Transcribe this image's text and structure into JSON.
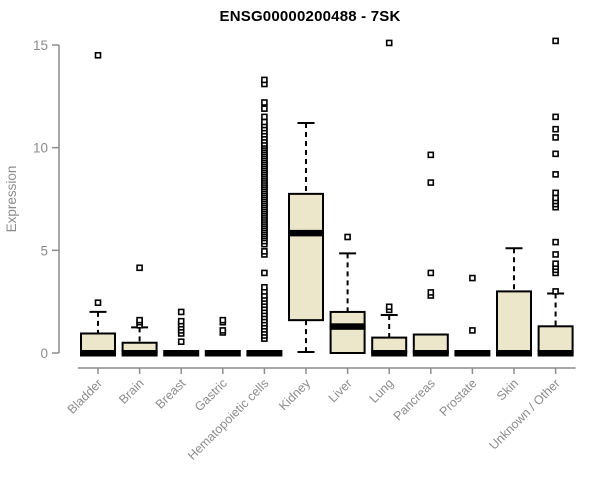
{
  "chart_data": {
    "type": "boxplot",
    "title": "ENSG00000200488 - 7SK",
    "ylabel": "Expression",
    "xlabel": "",
    "ylim": [
      0,
      15
    ],
    "yticks": [
      0,
      5,
      10,
      15
    ],
    "grid": false,
    "legend": "none",
    "colors": {
      "box_fill": "#ece7cb",
      "box_stroke": "#000000",
      "axis": "#8c8c8c",
      "tick_label": "#8c8c8c",
      "title": "#000000"
    },
    "categories": [
      "Bladder",
      "Brain",
      "Breast",
      "Gastric",
      "Hematopoietic cells",
      "Kidney",
      "Liver",
      "Lung",
      "Pancreas",
      "Prostate",
      "Skin",
      "Unknown / Other"
    ],
    "series": [
      {
        "name": "Bladder",
        "q1": 0,
        "median": 0,
        "q3": 0.95,
        "whisker_low": 0,
        "whisker_high": 2.0,
        "outliers": [
          2.45,
          14.5
        ]
      },
      {
        "name": "Brain",
        "q1": 0,
        "median": 0,
        "q3": 0.5,
        "whisker_low": 0,
        "whisker_high": 1.25,
        "outliers": [
          1.35,
          1.5,
          1.6,
          4.15
        ]
      },
      {
        "name": "Breast",
        "q1": 0,
        "median": 0,
        "q3": 0,
        "whisker_low": 0,
        "whisker_high": 0,
        "outliers": [
          0.55,
          0.95,
          1.1,
          1.25,
          1.4,
          1.55,
          2.0
        ]
      },
      {
        "name": "Gastric",
        "q1": 0,
        "median": 0,
        "q3": 0,
        "whisker_low": 0,
        "whisker_high": 0,
        "outliers": [
          1.0,
          1.1,
          1.5,
          1.6
        ]
      },
      {
        "name": "Hematopoietic cells",
        "q1": 0,
        "median": 0,
        "q3": 0,
        "whisker_low": 0,
        "whisker_high": 0,
        "outliers": [
          0.7,
          0.85,
          1.0,
          1.15,
          1.3,
          1.45,
          1.6,
          1.75,
          1.9,
          2.05,
          2.2,
          2.35,
          2.5,
          2.65,
          2.8,
          3.0,
          3.2,
          3.9,
          4.8,
          4.95,
          5.3,
          5.45,
          5.6,
          5.7,
          5.8,
          5.9,
          6.0,
          6.1,
          6.2,
          6.3,
          6.4,
          6.5,
          6.6,
          6.7,
          6.8,
          6.9,
          7.0,
          7.1,
          7.2,
          7.3,
          7.4,
          7.5,
          7.6,
          7.7,
          7.8,
          7.9,
          8.0,
          8.1,
          8.2,
          8.3,
          8.4,
          8.5,
          8.6,
          8.7,
          8.8,
          8.9,
          9.0,
          9.1,
          9.2,
          9.3,
          9.4,
          9.5,
          9.6,
          9.7,
          9.8,
          9.9,
          10.0,
          10.1,
          10.2,
          10.35,
          10.5,
          10.65,
          10.8,
          10.95,
          11.1,
          11.25,
          11.5,
          11.9,
          12.2,
          13.1,
          13.3
        ]
      },
      {
        "name": "Kidney",
        "q1": 1.6,
        "median": 5.85,
        "q3": 7.75,
        "whisker_low": 0.05,
        "whisker_high": 11.2,
        "outliers": []
      },
      {
        "name": "Liver",
        "q1": 0,
        "median": 1.3,
        "q3": 2.0,
        "whisker_low": 0,
        "whisker_high": 4.85,
        "outliers": [
          5.65
        ]
      },
      {
        "name": "Lung",
        "q1": 0,
        "median": 0,
        "q3": 0.75,
        "whisker_low": 0,
        "whisker_high": 1.85,
        "outliers": [
          2.1,
          2.25,
          15.1
        ]
      },
      {
        "name": "Pancreas",
        "q1": 0,
        "median": 0,
        "q3": 0.9,
        "whisker_low": 0,
        "whisker_high": 0.9,
        "outliers": [
          2.8,
          2.95,
          3.9,
          8.3,
          9.65
        ]
      },
      {
        "name": "Prostate",
        "q1": 0,
        "median": 0,
        "q3": 0,
        "whisker_low": 0,
        "whisker_high": 0,
        "outliers": [
          1.1,
          3.65
        ]
      },
      {
        "name": "Skin",
        "q1": 0,
        "median": 0,
        "q3": 3.0,
        "whisker_low": 0,
        "whisker_high": 5.1,
        "outliers": []
      },
      {
        "name": "Unknown / Other",
        "q1": 0,
        "median": 0,
        "q3": 1.3,
        "whisker_low": 0,
        "whisker_high": 2.9,
        "outliers": [
          3.0,
          3.9,
          4.05,
          4.2,
          4.35,
          4.8,
          5.4,
          7.1,
          7.25,
          7.4,
          7.55,
          7.8,
          8.7,
          9.7,
          10.5,
          10.9,
          11.5,
          15.2
        ]
      }
    ]
  }
}
